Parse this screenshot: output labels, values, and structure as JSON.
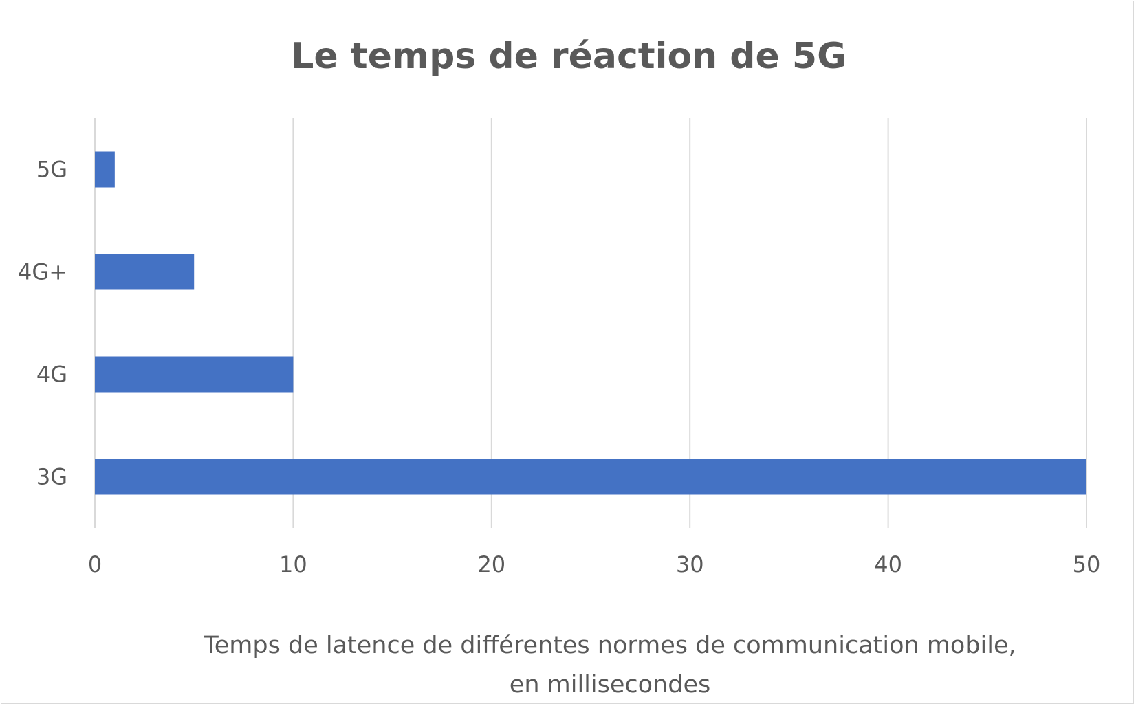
{
  "chart_data": {
    "type": "bar",
    "orientation": "horizontal",
    "title": "Le temps de réaction de 5G",
    "xlabel_lines": [
      "Temps de latence de différentes normes de communication mobile,",
      "en millisecondes"
    ],
    "ylabel": "",
    "categories": [
      "5G",
      "4G+",
      "4G",
      "3G"
    ],
    "values": [
      1,
      5,
      10,
      50
    ],
    "xlim": [
      0,
      50
    ],
    "xticks": [
      "0",
      "10",
      "20",
      "30",
      "40",
      "50"
    ],
    "grid": "vertical",
    "legend": "none",
    "bar_color": "#4472C4",
    "grid_color": "#d9d9d9",
    "text_color": "#595959"
  }
}
